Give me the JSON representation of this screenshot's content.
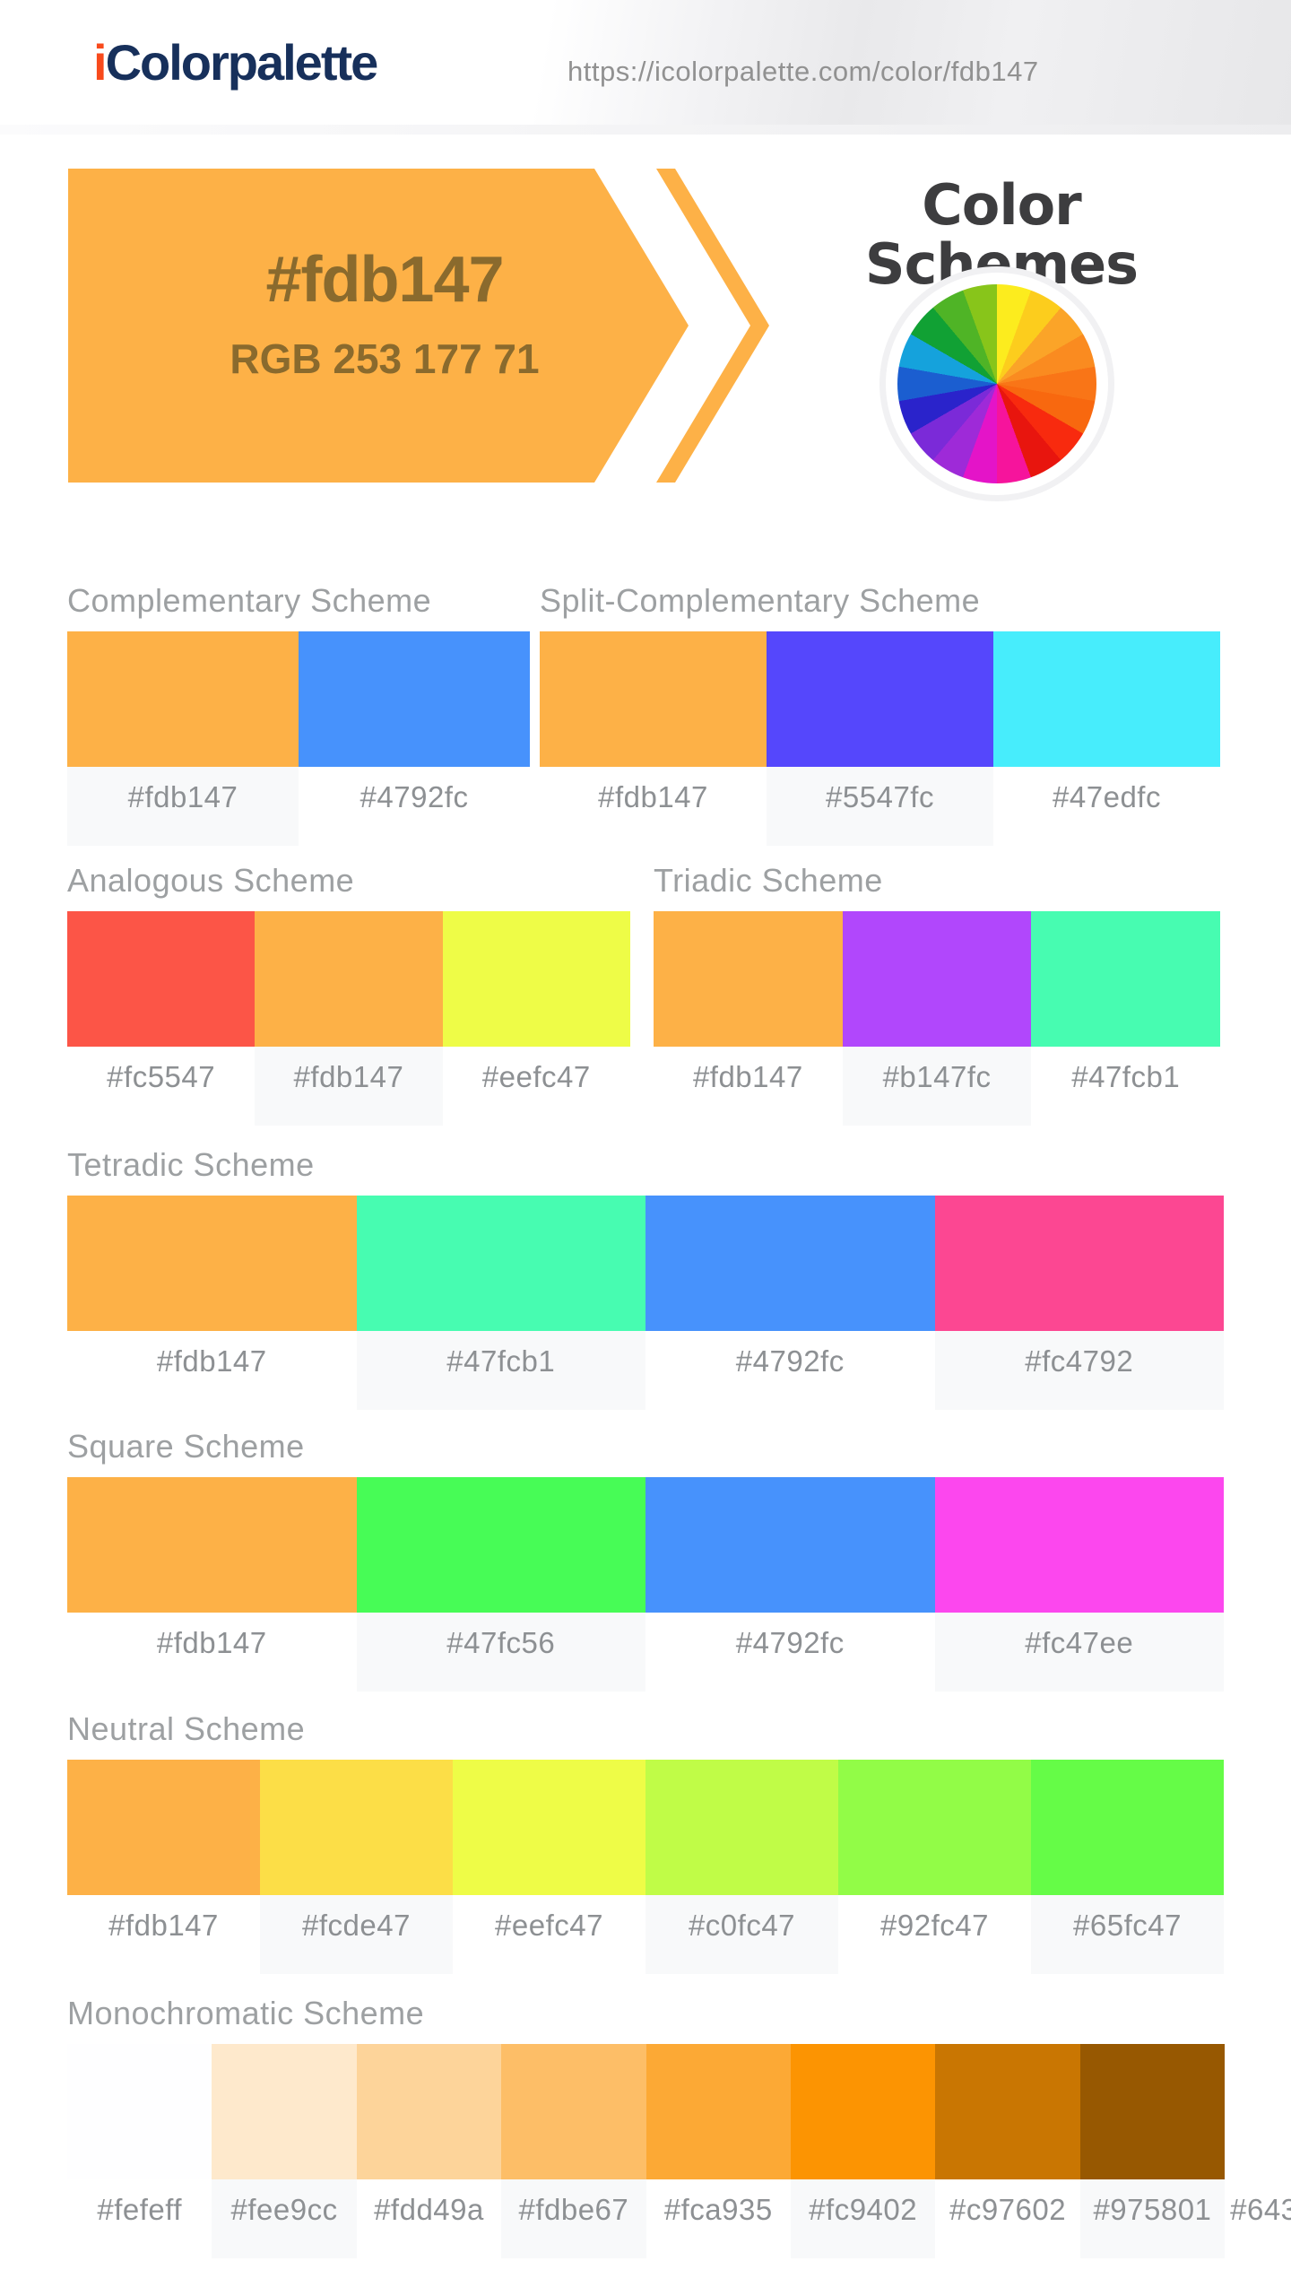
{
  "header": {
    "logo_accent": "i",
    "logo_text": "Colorpalette",
    "logo_accent_color": "#f84a1c",
    "logo_text_color": "#17305b",
    "url": "https://icolorpalette.com/color/fdb147"
  },
  "banner": {
    "hex": "#fdb147",
    "rgb_label": "RGB 253 177 71",
    "arrow_color": "#fdb147",
    "text_color": "#8a6a2d"
  },
  "schemes_heading": "Color Schemes",
  "color_wheel": {
    "segments": [
      "#fcec1e",
      "#fccd1d",
      "#fba428",
      "#fa8b20",
      "#f97517",
      "#f8680f",
      "#f82a0e",
      "#e8150e",
      "#f6149c",
      "#e414c8",
      "#9e2ad8",
      "#7b2ad8",
      "#2a23cb",
      "#1b5ed0",
      "#15a2dc",
      "#11a134",
      "#4fb426",
      "#88c51a"
    ]
  },
  "schemes": [
    {
      "id": "complementary",
      "title": "Complementary Scheme",
      "colors": [
        {
          "hex": "#fdb147",
          "label": "#fdb147",
          "shaded": true
        },
        {
          "hex": "#4792fc",
          "label": "#4792fc",
          "shaded": false
        }
      ]
    },
    {
      "id": "split-complementary",
      "title": "Split-Complementary Scheme",
      "colors": [
        {
          "hex": "#fdb147",
          "label": "#fdb147",
          "shaded": false
        },
        {
          "hex": "#5547fc",
          "label": "#5547fc",
          "shaded": true
        },
        {
          "hex": "#47edfc",
          "label": "#47edfc",
          "shaded": false
        }
      ]
    },
    {
      "id": "analogous",
      "title": "Analogous Scheme",
      "colors": [
        {
          "hex": "#fc5547",
          "label": "#fc5547",
          "shaded": false
        },
        {
          "hex": "#fdb147",
          "label": "#fdb147",
          "shaded": true
        },
        {
          "hex": "#eefc47",
          "label": "#eefc47",
          "shaded": false
        }
      ]
    },
    {
      "id": "triadic",
      "title": "Triadic Scheme",
      "colors": [
        {
          "hex": "#fdb147",
          "label": "#fdb147",
          "shaded": false
        },
        {
          "hex": "#b147fc",
          "label": "#b147fc",
          "shaded": true
        },
        {
          "hex": "#47fcb1",
          "label": "#47fcb1",
          "shaded": false
        }
      ]
    },
    {
      "id": "tetradic",
      "title": "Tetradic Scheme",
      "colors": [
        {
          "hex": "#fdb147",
          "label": "#fdb147",
          "shaded": false
        },
        {
          "hex": "#47fcb1",
          "label": "#47fcb1",
          "shaded": true
        },
        {
          "hex": "#4792fc",
          "label": "#4792fc",
          "shaded": false
        },
        {
          "hex": "#fc4792",
          "label": "#fc4792",
          "shaded": true
        }
      ]
    },
    {
      "id": "square",
      "title": "Square Scheme",
      "colors": [
        {
          "hex": "#fdb147",
          "label": "#fdb147",
          "shaded": false
        },
        {
          "hex": "#47fc56",
          "label": "#47fc56",
          "shaded": true
        },
        {
          "hex": "#4792fc",
          "label": "#4792fc",
          "shaded": false
        },
        {
          "hex": "#fc47ee",
          "label": "#fc47ee",
          "shaded": true
        }
      ]
    },
    {
      "id": "neutral",
      "title": "Neutral Scheme",
      "colors": [
        {
          "hex": "#fdb147",
          "label": "#fdb147",
          "shaded": false
        },
        {
          "hex": "#fcde47",
          "label": "#fcde47",
          "shaded": true
        },
        {
          "hex": "#eefc47",
          "label": "#eefc47",
          "shaded": false
        },
        {
          "hex": "#c0fc47",
          "label": "#c0fc47",
          "shaded": true
        },
        {
          "hex": "#92fc47",
          "label": "#92fc47",
          "shaded": false
        },
        {
          "hex": "#65fc47",
          "label": "#65fc47",
          "shaded": true
        }
      ]
    },
    {
      "id": "monochromatic",
      "title": "Monochromatic Scheme",
      "colors": [
        {
          "hex": "#fefeff",
          "label": "#fefeff",
          "shaded": false
        },
        {
          "hex": "#fee9cc",
          "label": "#fee9cc",
          "shaded": true
        },
        {
          "hex": "#fdd49a",
          "label": "#fdd49a",
          "shaded": false
        },
        {
          "hex": "#fdbe67",
          "label": "#fdbe67",
          "shaded": true
        },
        {
          "hex": "#fca935",
          "label": "#fca935",
          "shaded": false
        },
        {
          "hex": "#fc9402",
          "label": "#fc9402",
          "shaded": true
        },
        {
          "hex": "#c97602",
          "label": "#c97602",
          "shaded": false
        },
        {
          "hex": "#975801",
          "label": "#975801",
          "shaded": true
        },
        {
          "hex": null,
          "label": "#643",
          "shaded": false,
          "clipped": true
        }
      ]
    }
  ]
}
